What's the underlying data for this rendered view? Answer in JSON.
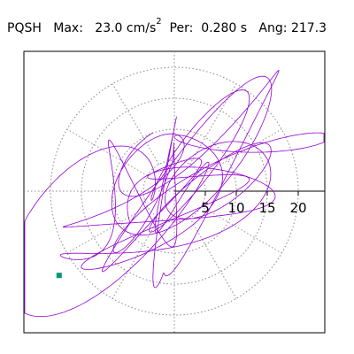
{
  "header": {
    "station": "PQSH",
    "max_label": "Max:",
    "max_value": "23.0 cm/s",
    "max_exp": "2",
    "per_label": "Per:",
    "per_value": "0.280 s",
    "ang_label": "Ang:",
    "ang_value": "217.3"
  },
  "chart_data": {
    "type": "polar-particle-motion",
    "radial_ticks": [
      5,
      10,
      15,
      20
    ],
    "radial_tick_labels": [
      "5",
      "10",
      "15",
      "20"
    ],
    "rmax_rings": 20,
    "angular_step_deg": 30,
    "grid": true,
    "principal_direction_deg": 217.3,
    "max_amplitude": 23.0,
    "end_point": {
      "x": -18.6,
      "y": -13.6
    },
    "trace_color": "#9400D3",
    "marker_color": "#009977",
    "grid_color": "#888888"
  }
}
